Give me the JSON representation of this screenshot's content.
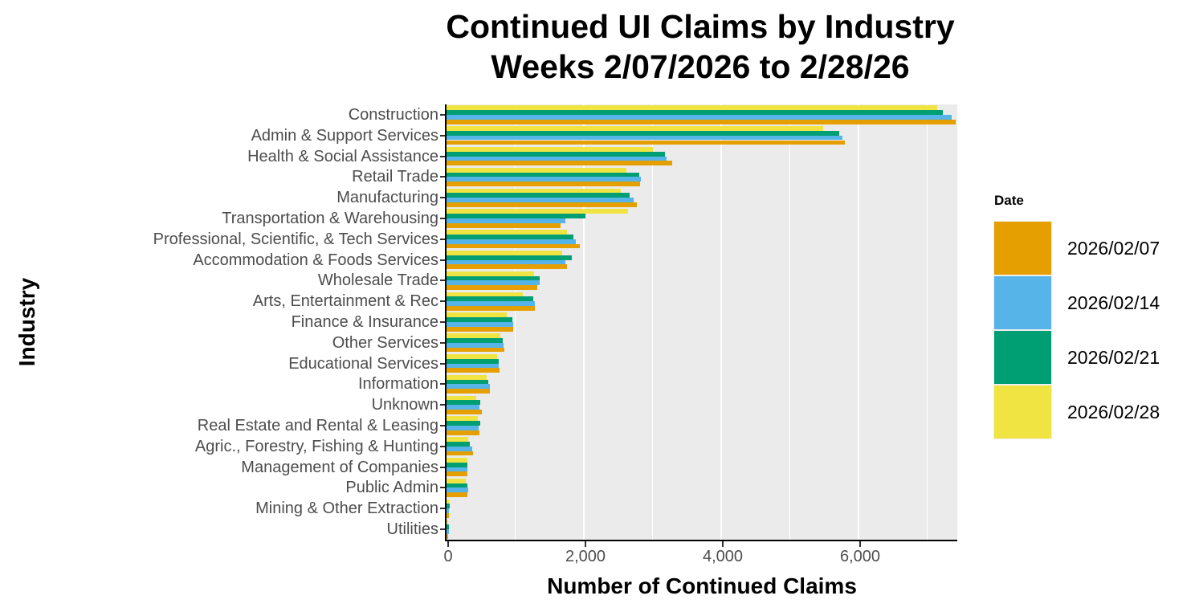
{
  "chart_data": {
    "type": "bar",
    "orientation": "horizontal-grouped",
    "title_line1": "Continued UI Claims by Industry",
    "title_line2": "Weeks 2/07/2026 to 2/28/26",
    "xlabel": "Number of Continued Claims",
    "ylabel": "Industry",
    "legend_title": "Date",
    "legend_position": "right",
    "grid": "on",
    "panel_background": "#EBEBEB",
    "gridline_color": "#ffffff",
    "xlim": [
      0,
      7440
    ],
    "x_ticks": [
      {
        "value": 0,
        "label": "0"
      },
      {
        "value": 2000,
        "label": "2,000"
      },
      {
        "value": 4000,
        "label": "4,000"
      },
      {
        "value": 6000,
        "label": "6,000"
      }
    ],
    "x_minor_ticks": [
      1000,
      3000,
      5000,
      7000
    ],
    "categories": [
      "Construction",
      "Admin & Support Services",
      "Health & Social Assistance",
      "Retail Trade",
      "Manufacturing",
      "Transportation & Warehousing",
      "Professional, Scientific, & Tech Services",
      "Accommodation & Foods Services",
      "Wholesale Trade",
      "Arts, Entertainment & Rec",
      "Finance & Insurance",
      "Other Services",
      "Educational Services",
      "Information",
      "Unknown",
      "Real Estate and Rental & Leasing",
      "Agric., Forestry, Fishing & Hunting",
      "Management of Companies",
      "Public Admin",
      "Mining & Other Extraction",
      "Utilities"
    ],
    "series": [
      {
        "name": "2026/02/07",
        "color": "#E69F00",
        "values": [
          7410,
          5800,
          3290,
          2815,
          2770,
          1660,
          1940,
          1760,
          1320,
          1290,
          975,
          845,
          775,
          630,
          515,
          480,
          385,
          305,
          305,
          32,
          25
        ]
      },
      {
        "name": "2026/02/14",
        "color": "#56B4E9",
        "values": [
          7360,
          5770,
          3200,
          2830,
          2730,
          1730,
          1885,
          1730,
          1355,
          1285,
          970,
          830,
          760,
          630,
          485,
          470,
          380,
          305,
          310,
          40,
          40
        ]
      },
      {
        "name": "2026/02/21",
        "color": "#009E73",
        "values": [
          7230,
          5720,
          3180,
          2805,
          2665,
          2020,
          1850,
          1825,
          1355,
          1265,
          960,
          820,
          765,
          610,
          490,
          490,
          345,
          305,
          305,
          47,
          30
        ]
      },
      {
        "name": "2026/02/28",
        "color": "#F0E442",
        "values": [
          7150,
          5490,
          3000,
          2615,
          2540,
          2640,
          1755,
          1690,
          1270,
          1115,
          880,
          785,
          735,
          580,
          435,
          460,
          310,
          305,
          280,
          32,
          25
        ]
      }
    ]
  }
}
